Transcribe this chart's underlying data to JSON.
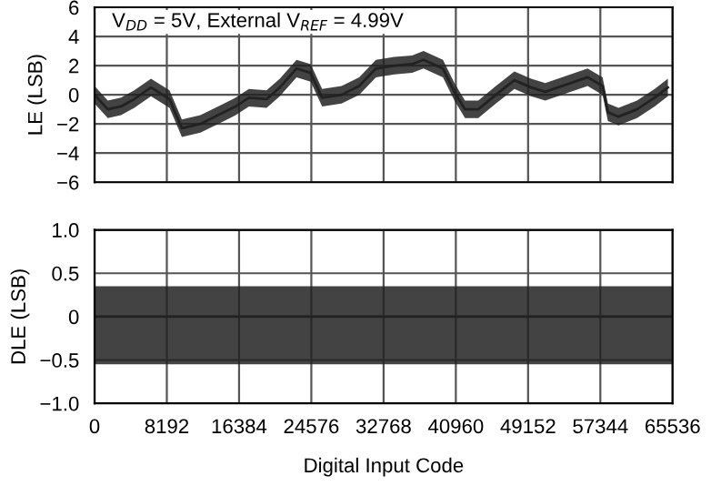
{
  "chart_data": [
    {
      "type": "line",
      "ylabel": "LE (LSB)",
      "annotations": [
        "V$_{DD}$ = 5V, External V$_{REF}$ = 4.99V"
      ],
      "x": [
        0,
        1500,
        3000,
        4500,
        6400,
        8500,
        9900,
        12000,
        14000,
        16000,
        17500,
        19500,
        21000,
        22900,
        24500,
        25800,
        28000,
        30000,
        31900,
        34000,
        36000,
        37300,
        39500,
        40800,
        42000,
        43500,
        45500,
        47600,
        49500,
        51100,
        53500,
        55900,
        57600,
        58200,
        59400,
        61500,
        63500,
        65000
      ],
      "series": [
        {
          "color": "#222222",
          "values": [
            0,
            -1,
            -0.8,
            -0.3,
            0.5,
            -0.3,
            -2.3,
            -2,
            -1.4,
            -0.8,
            -0.2,
            -0.3,
            0.5,
            1.8,
            1.5,
            -0.2,
            0,
            0.6,
            1.8,
            2,
            2.1,
            2.4,
            1.8,
            0.2,
            -1,
            -1,
            0,
            1,
            0.5,
            0.2,
            0.7,
            1.2,
            0.6,
            -1.2,
            -1.5,
            -1,
            -0.2,
            0.5
          ],
          "lower": [
            -0.6,
            -1.6,
            -1.4,
            -0.9,
            -0.1,
            -0.9,
            -2.9,
            -2.6,
            -2,
            -1.4,
            -0.8,
            -0.9,
            -0.1,
            1.2,
            0.9,
            -0.8,
            -0.6,
            0,
            1.2,
            1.4,
            1.5,
            1.8,
            1.2,
            -0.4,
            -1.6,
            -1.6,
            -0.6,
            0.4,
            -0.1,
            -0.4,
            0.1,
            0.6,
            0,
            -1.8,
            -2.1,
            -1.6,
            -0.8,
            -0.1
          ],
          "upper": [
            0.6,
            -0.4,
            -0.2,
            0.3,
            1.1,
            0.3,
            -1.7,
            -1.4,
            -0.8,
            -0.2,
            0.4,
            0.3,
            1.1,
            2.4,
            2.1,
            0.4,
            0.6,
            1.2,
            2.4,
            2.6,
            2.7,
            3,
            2.4,
            0.8,
            -0.4,
            -0.4,
            0.6,
            1.6,
            1.1,
            0.8,
            1.3,
            1.8,
            1.2,
            -0.6,
            -0.9,
            -0.4,
            0.4,
            1.1
          ]
        }
      ],
      "xlim": [
        0,
        65536
      ],
      "xticks": [
        0,
        8192,
        16384,
        24576,
        32768,
        40960,
        49152,
        57344,
        65536
      ],
      "ylim": [
        -6,
        6
      ],
      "yticks": [
        6,
        4,
        2,
        0,
        {
          "value": -2,
          "label": "−2"
        },
        {
          "value": -4,
          "label": "−4"
        },
        {
          "value": -6,
          "label": "−6"
        }
      ],
      "grid": true,
      "tick_labels": "y"
    },
    {
      "type": "line",
      "ylabel": "DLE (LSB)",
      "xlabel": "Digital Input Code",
      "x": [
        0,
        65536
      ],
      "series": [
        {
          "color": "#222222",
          "values": [
            0,
            0
          ],
          "lower": [
            -0.55,
            -0.55
          ],
          "upper": [
            0.35,
            0.35
          ]
        }
      ],
      "xlim": [
        0,
        65536
      ],
      "xticks": [
        0,
        8192,
        16384,
        24576,
        32768,
        40960,
        49152,
        57344,
        65536
      ],
      "ylim": [
        -1,
        1
      ],
      "yticks": [
        {
          "value": 1,
          "label": "1.0"
        },
        {
          "value": 0.5,
          "label": "0.5"
        },
        0,
        {
          "value": -0.5,
          "label": "−0.5"
        },
        {
          "value": -1,
          "label": "−1.0"
        }
      ],
      "grid": true
    }
  ]
}
